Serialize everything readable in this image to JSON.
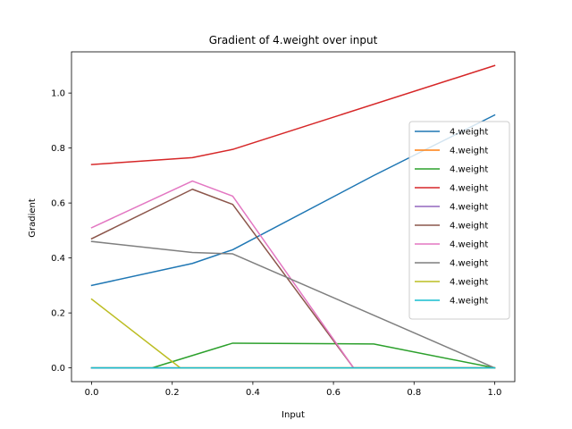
{
  "chart_data": {
    "type": "line",
    "title": "Gradient of 4.weight over input",
    "xlabel": "Input",
    "ylabel": "Gradient",
    "xlim": [
      -0.05,
      1.05
    ],
    "ylim": [
      -0.05,
      1.15
    ],
    "xticks": [
      0.0,
      0.2,
      0.4,
      0.6,
      0.8,
      1.0
    ],
    "xtick_labels": [
      "0.0",
      "0.2",
      "0.4",
      "0.6",
      "0.8",
      "1.0"
    ],
    "yticks": [
      0.0,
      0.2,
      0.4,
      0.6,
      0.8,
      1.0
    ],
    "ytick_labels": [
      "0.0",
      "0.2",
      "0.4",
      "0.6",
      "0.8",
      "1.0"
    ],
    "grid": false,
    "legend_position": "center-right",
    "series": [
      {
        "name": "4.weight",
        "color": "#1f77b4",
        "x": [
          0.0,
          0.25,
          0.35,
          0.7,
          1.0
        ],
        "y": [
          0.3,
          0.38,
          0.43,
          0.7,
          0.92
        ]
      },
      {
        "name": "4.weight",
        "color": "#ff7f0e",
        "x": [
          0.0,
          1.0
        ],
        "y": [
          0.0,
          0.0
        ]
      },
      {
        "name": "4.weight",
        "color": "#2ca02c",
        "x": [
          0.0,
          0.15,
          0.35,
          0.7,
          1.0
        ],
        "y": [
          0.0,
          0.0,
          0.09,
          0.087,
          0.0
        ]
      },
      {
        "name": "4.weight",
        "color": "#d62728",
        "x": [
          0.0,
          0.25,
          0.35,
          1.0
        ],
        "y": [
          0.74,
          0.765,
          0.795,
          1.1
        ]
      },
      {
        "name": "4.weight",
        "color": "#9467bd",
        "x": [
          0.0,
          1.0
        ],
        "y": [
          0.0,
          0.0
        ]
      },
      {
        "name": "4.weight",
        "color": "#8c564b",
        "x": [
          0.0,
          0.25,
          0.35,
          0.65,
          1.0
        ],
        "y": [
          0.47,
          0.65,
          0.595,
          0.0,
          0.0
        ]
      },
      {
        "name": "4.weight",
        "color": "#e377c2",
        "x": [
          0.0,
          0.25,
          0.35,
          0.65,
          1.0
        ],
        "y": [
          0.51,
          0.68,
          0.625,
          0.0,
          0.0
        ]
      },
      {
        "name": "4.weight",
        "color": "#7f7f7f",
        "x": [
          0.0,
          0.25,
          0.35,
          1.0
        ],
        "y": [
          0.46,
          0.42,
          0.415,
          0.0
        ]
      },
      {
        "name": "4.weight",
        "color": "#bcbd22",
        "x": [
          0.0,
          0.22,
          1.0
        ],
        "y": [
          0.25,
          0.0,
          0.0
        ]
      },
      {
        "name": "4.weight",
        "color": "#17becf",
        "x": [
          0.0,
          1.0
        ],
        "y": [
          0.0,
          0.0
        ]
      }
    ]
  }
}
